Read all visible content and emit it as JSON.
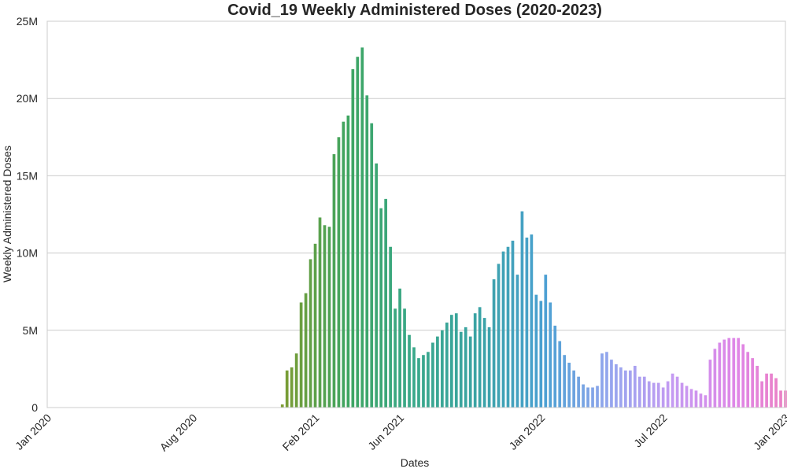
{
  "chart_data": {
    "type": "bar",
    "title": "Covid_19 Weekly Administered Doses (2020-2023)",
    "xlabel": "Dates",
    "ylabel": "Weekly Administered Doses",
    "ylim": [
      0,
      25000000
    ],
    "yticks": [
      0,
      5000000,
      10000000,
      15000000,
      20000000,
      25000000
    ],
    "ytick_labels": [
      "0",
      "5M",
      "10M",
      "15M",
      "20M",
      "25M"
    ],
    "xlim": [
      "2019-12-29",
      "2023-01-01"
    ],
    "xticks": [
      "2019-12-29",
      "2020-08-02",
      "2021-01-31",
      "2021-06-06",
      "2022-01-02",
      "2022-07-03",
      "2023-01-01"
    ],
    "xtick_labels": [
      "Jan 2020",
      "Aug 2020",
      "Feb 2021",
      "Jun 2021",
      "Jan 2022",
      "Jul 2022",
      "Jan 2023"
    ],
    "grid": "horizontal",
    "legend": "none",
    "first_week": "2020-12-13",
    "values": [
      200000,
      2400000,
      2600000,
      3500000,
      6800000,
      7400000,
      9600000,
      10600000,
      12300000,
      11800000,
      11700000,
      16400000,
      17500000,
      18500000,
      18900000,
      21900000,
      22700000,
      23300000,
      20200000,
      18400000,
      15800000,
      12900000,
      13500000,
      10400000,
      6400000,
      7700000,
      6400000,
      4700000,
      3900000,
      3200000,
      3400000,
      3600000,
      4200000,
      4600000,
      5000000,
      5500000,
      6000000,
      6100000,
      4900000,
      5200000,
      4600000,
      6100000,
      6500000,
      5800000,
      5200000,
      8300000,
      9300000,
      10100000,
      10400000,
      10800000,
      8600000,
      12700000,
      11000000,
      11200000,
      7300000,
      6900000,
      8600000,
      6800000,
      5300000,
      4300000,
      3400000,
      2900000,
      2400000,
      2000000,
      1500000,
      1300000,
      1300000,
      1400000,
      3500000,
      3600000,
      3100000,
      2800000,
      2600000,
      2400000,
      2400000,
      2700000,
      2000000,
      2000000,
      1700000,
      1600000,
      1600000,
      1300000,
      1700000,
      2200000,
      2000000,
      1600000,
      1400000,
      1200000,
      1100000,
      900000,
      800000,
      3100000,
      3800000,
      4200000,
      4400000,
      4500000,
      4500000,
      4500000,
      4100000,
      3600000,
      3200000,
      2700000,
      1700000,
      2200000,
      2200000,
      1900000,
      1100000,
      1100000,
      1200000,
      1000000,
      700000,
      300000
    ],
    "color_stops": [
      "#7d9c33",
      "#3ea561",
      "#3aa88a",
      "#3aa3a4",
      "#4aa0d2",
      "#94a6ee",
      "#c59af2",
      "#e085e6",
      "#f07fb5"
    ]
  }
}
